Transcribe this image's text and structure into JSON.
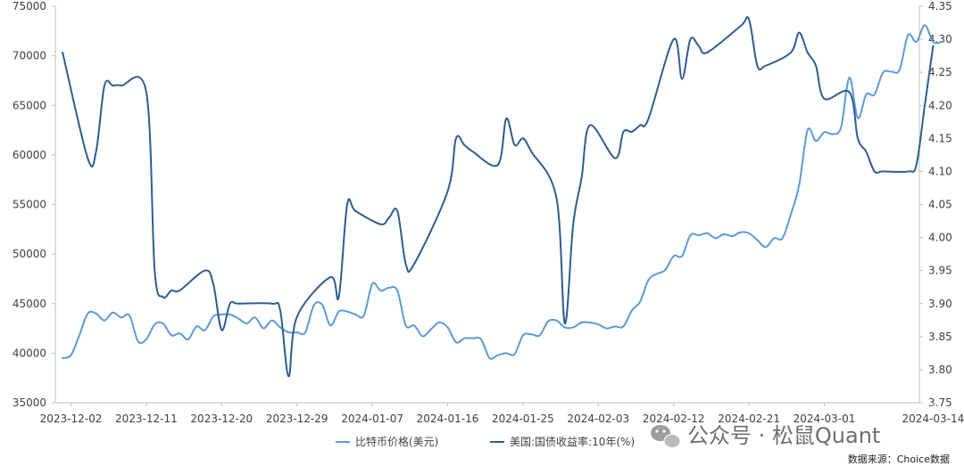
{
  "chart_data": {
    "type": "line",
    "x_ticks": [
      "2023-12-02",
      "2023-12-11",
      "2023-12-20",
      "2023-12-29",
      "2024-01-07",
      "2024-01-16",
      "2024-01-25",
      "2024-02-03",
      "2024-02-12",
      "2024-02-21",
      "2024-03-01",
      "2024-03-14"
    ],
    "y_left": {
      "min": 35000,
      "max": 75000,
      "ticks": [
        35000,
        40000,
        45000,
        50000,
        55000,
        60000,
        65000,
        70000,
        75000
      ]
    },
    "y_right": {
      "min": 3.75,
      "max": 4.35,
      "ticks": [
        "3.75",
        "3.80",
        "3.85",
        "3.90",
        "3.95",
        "4.00",
        "4.05",
        "4.10",
        "4.15",
        "4.20",
        "4.25",
        "4.30",
        "4.35"
      ]
    },
    "grid": false,
    "legend_position": "bottom",
    "series": [
      {
        "name": "比特币价格(美元)",
        "axis": "left",
        "color": "#5b9bd5",
        "x": [
          "2023-12-01",
          "2023-12-02",
          "2023-12-03",
          "2023-12-04",
          "2023-12-05",
          "2023-12-06",
          "2023-12-07",
          "2023-12-08",
          "2023-12-09",
          "2023-12-10",
          "2023-12-11",
          "2023-12-12",
          "2023-12-13",
          "2023-12-14",
          "2023-12-15",
          "2023-12-16",
          "2023-12-17",
          "2023-12-18",
          "2023-12-19",
          "2023-12-20",
          "2023-12-21",
          "2023-12-22",
          "2023-12-23",
          "2023-12-24",
          "2023-12-25",
          "2023-12-26",
          "2023-12-27",
          "2023-12-28",
          "2023-12-29",
          "2023-12-30",
          "2023-12-31",
          "2024-01-01",
          "2024-01-02",
          "2024-01-03",
          "2024-01-04",
          "2024-01-05",
          "2024-01-06",
          "2024-01-07",
          "2024-01-08",
          "2024-01-09",
          "2024-01-10",
          "2024-01-11",
          "2024-01-12",
          "2024-01-13",
          "2024-01-14",
          "2024-01-15",
          "2024-01-16",
          "2024-01-17",
          "2024-01-18",
          "2024-01-19",
          "2024-01-20",
          "2024-01-21",
          "2024-01-22",
          "2024-01-23",
          "2024-01-24",
          "2024-01-25",
          "2024-01-26",
          "2024-01-27",
          "2024-01-28",
          "2024-01-29",
          "2024-01-30",
          "2024-01-31",
          "2024-02-01",
          "2024-02-02",
          "2024-02-03",
          "2024-02-04",
          "2024-02-05",
          "2024-02-06",
          "2024-02-07",
          "2024-02-08",
          "2024-02-09",
          "2024-02-10",
          "2024-02-11",
          "2024-02-12",
          "2024-02-13",
          "2024-02-14",
          "2024-02-15",
          "2024-02-16",
          "2024-02-17",
          "2024-02-18",
          "2024-02-19",
          "2024-02-20",
          "2024-02-21",
          "2024-02-22",
          "2024-02-23",
          "2024-02-24",
          "2024-02-25",
          "2024-02-26",
          "2024-02-27",
          "2024-02-28",
          "2024-02-29",
          "2024-03-01",
          "2024-03-02",
          "2024-03-03",
          "2024-03-04",
          "2024-03-05",
          "2024-03-06",
          "2024-03-07",
          "2024-03-08",
          "2024-03-09",
          "2024-03-10",
          "2024-03-11",
          "2024-03-12",
          "2024-03-13",
          "2024-03-14",
          "2024-03-15"
        ],
        "values": [
          39500,
          39800,
          41800,
          44000,
          44000,
          43300,
          44100,
          43600,
          43800,
          41200,
          41400,
          42900,
          43000,
          41800,
          42000,
          41400,
          42700,
          42300,
          43700,
          43900,
          43900,
          43500,
          43000,
          43600,
          42500,
          43300,
          42600,
          42100,
          42100,
          42100,
          44800,
          44900,
          42800,
          44200,
          44200,
          43900,
          43800,
          47000,
          46300,
          46600,
          46300,
          42800,
          42800,
          41700,
          42400,
          43100,
          42600,
          41100,
          41500,
          41500,
          41400,
          39500,
          39800,
          40000,
          39900,
          41800,
          41900,
          41800,
          43200,
          43300,
          42600,
          42600,
          43100,
          43100,
          42900,
          42500,
          42700,
          42700,
          44300,
          45200,
          47400,
          48000,
          48400,
          49800,
          49800,
          51900,
          51900,
          52100,
          51600,
          52000,
          51800,
          52200,
          52100,
          51400,
          50700,
          51600,
          51600,
          54000,
          57000,
          62500,
          61400,
          62300,
          62100,
          62800,
          67800,
          63700,
          66100,
          66100,
          68300,
          68400,
          68600,
          72100,
          71400,
          73100,
          71400,
          71400
        ],
        "ylim": [
          35000,
          75000
        ]
      },
      {
        "name": "美国:国债收益率:10年(%)",
        "axis": "right",
        "color": "#2e5d91",
        "x": [
          "2023-12-01",
          "2023-12-04",
          "2023-12-05",
          "2023-12-06",
          "2023-12-07",
          "2023-12-08",
          "2023-12-11",
          "2023-12-12",
          "2023-12-13",
          "2023-12-14",
          "2023-12-15",
          "2023-12-18",
          "2023-12-19",
          "2023-12-20",
          "2023-12-21",
          "2023-12-22",
          "2023-12-26",
          "2023-12-27",
          "2023-12-28",
          "2023-12-29",
          "2024-01-02",
          "2024-01-03",
          "2024-01-04",
          "2024-01-05",
          "2024-01-08",
          "2024-01-09",
          "2024-01-10",
          "2024-01-11",
          "2024-01-12",
          "2024-01-16",
          "2024-01-17",
          "2024-01-18",
          "2024-01-19",
          "2024-01-22",
          "2024-01-23",
          "2024-01-24",
          "2024-01-25",
          "2024-01-26",
          "2024-01-29",
          "2024-01-30",
          "2024-01-31",
          "2024-02-01",
          "2024-02-02",
          "2024-02-05",
          "2024-02-06",
          "2024-02-07",
          "2024-02-08",
          "2024-02-09",
          "2024-02-12",
          "2024-02-13",
          "2024-02-14",
          "2024-02-15",
          "2024-02-16",
          "2024-02-20",
          "2024-02-21",
          "2024-02-22",
          "2024-02-23",
          "2024-02-26",
          "2024-02-27",
          "2024-02-28",
          "2024-02-29",
          "2024-03-01",
          "2024-03-04",
          "2024-03-05",
          "2024-03-06",
          "2024-03-07",
          "2024-03-08",
          "2024-03-11",
          "2024-03-12",
          "2024-03-13",
          "2024-03-14"
        ],
        "values": [
          4.28,
          4.12,
          4.13,
          4.23,
          4.23,
          4.23,
          4.22,
          3.95,
          3.91,
          3.92,
          3.92,
          3.95,
          3.93,
          3.86,
          3.9,
          3.9,
          3.9,
          3.89,
          3.79,
          3.88,
          3.94,
          3.91,
          4.05,
          4.04,
          4.02,
          4.03,
          4.04,
          3.96,
          3.96,
          4.07,
          4.15,
          4.14,
          4.13,
          4.11,
          4.18,
          4.14,
          4.15,
          4.13,
          4.06,
          3.87,
          4.02,
          4.09,
          4.17,
          4.12,
          4.16,
          4.16,
          4.17,
          4.18,
          4.3,
          4.24,
          4.3,
          4.29,
          4.28,
          4.32,
          4.33,
          4.26,
          4.26,
          4.28,
          4.31,
          4.28,
          4.26,
          4.21,
          4.22,
          4.15,
          4.13,
          4.1,
          4.1,
          4.1,
          4.11,
          4.2,
          4.29
        ],
        "ylim": [
          3.75,
          4.35
        ]
      }
    ]
  },
  "legend": {
    "items": [
      {
        "label": "比特币价格(美元)",
        "color": "#5b9bd5"
      },
      {
        "label": "美国:国债收益率:10年(%)",
        "color": "#2e5d91"
      }
    ]
  },
  "watermark": {
    "text": "公众号 · 松鼠Quant",
    "icon": "wechat-icon"
  },
  "source": {
    "text": "数据来源：Choice数据"
  }
}
